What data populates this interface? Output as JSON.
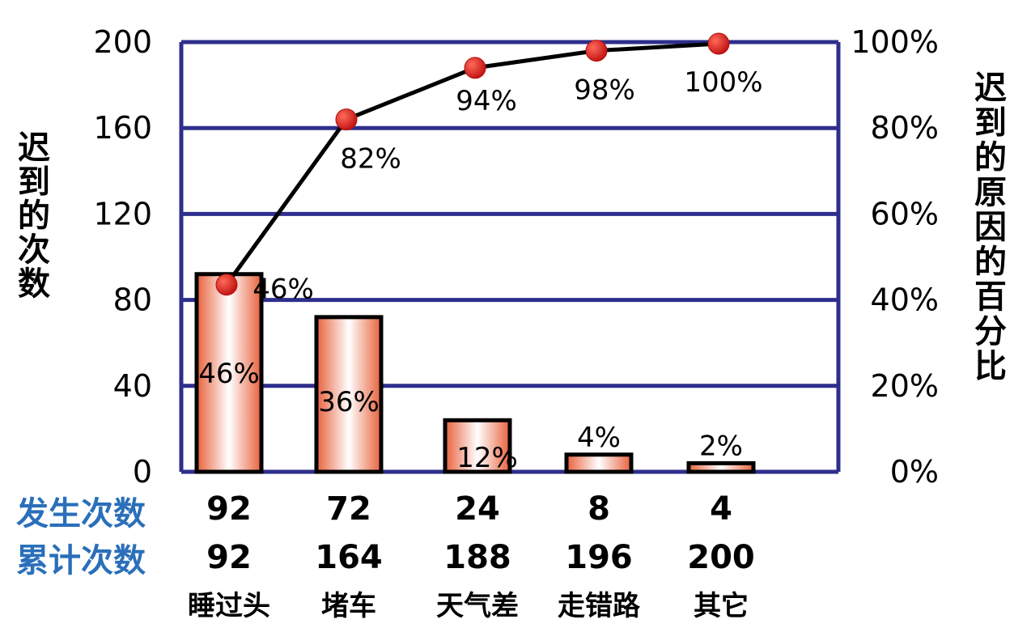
{
  "chart_data": {
    "type": "bar",
    "categories": [
      "睡过头",
      "堵车",
      "天气差",
      "走错路",
      "其它"
    ],
    "series": [
      {
        "values": [
          92,
          72,
          24,
          8,
          4
        ]
      },
      {
        "values": [
          46,
          82,
          94,
          98,
          100
        ]
      }
    ],
    "bar_labels": [
      "46%",
      "36%",
      "12%",
      "4%",
      "2%"
    ],
    "line_labels": [
      "46%",
      "82%",
      "94%",
      "98%",
      "100%"
    ],
    "ylabel": "迟到的次数",
    "y2label": "迟到的原因的百分比",
    "ylim": [
      0,
      200
    ],
    "y2lim": [
      0,
      100
    ],
    "yticks": [
      "0",
      "40",
      "80",
      "120",
      "160",
      "200"
    ],
    "y2ticks": [
      "0%",
      "20%",
      "40%",
      "60%",
      "80%",
      "100%"
    ],
    "grid": true,
    "table": {
      "row1_label": "发生次数",
      "row1_values": [
        "92",
        "72",
        "24",
        "8",
        "4"
      ],
      "row2_label": "累计次数",
      "row2_values": [
        "92",
        "164",
        "188",
        "196",
        "200"
      ]
    },
    "colors": {
      "grid": "#2e2e8c",
      "bar_edge": "#e8603c",
      "dot": "#d42020",
      "table_label": "#2a6fba"
    }
  }
}
